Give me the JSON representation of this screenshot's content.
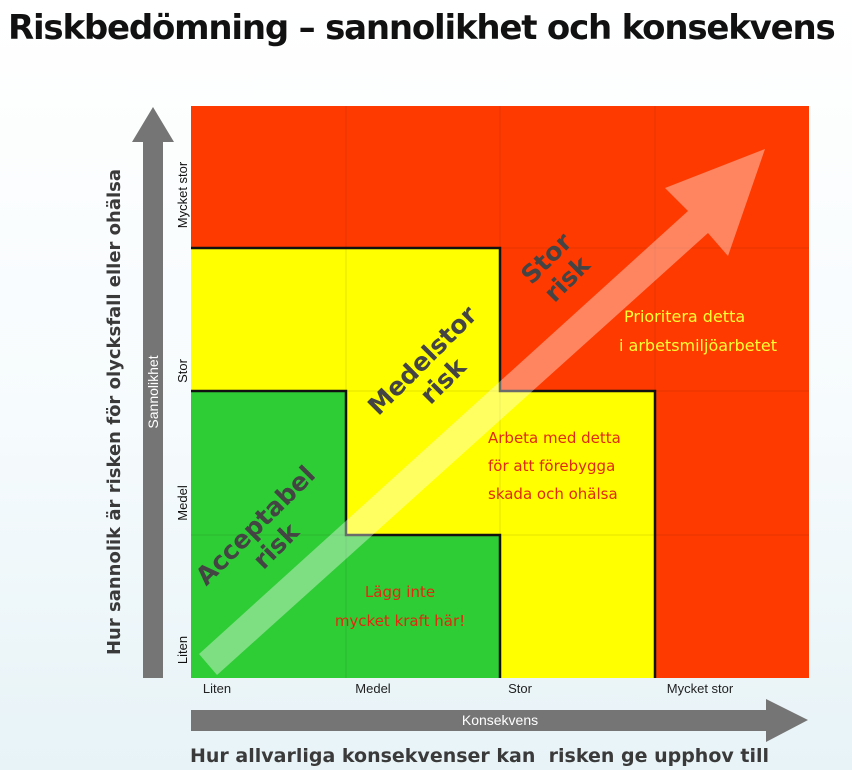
{
  "title": "Riskbedömning – sannolikhet och konsekvens",
  "y_axis": {
    "arrow_label": "Sannolikhet",
    "question": "Hur sannolik är risken för olycksfall eller ohälsa",
    "ticks": [
      "Liten",
      "Medel",
      "Stor",
      "Mycket stor"
    ]
  },
  "x_axis": {
    "arrow_label": "Konsekvens",
    "question": "Hur allvarliga konsekvenser kan  risken ge upphov till",
    "ticks": [
      "Liten",
      "Medel",
      "Stor",
      "Mycket stor"
    ]
  },
  "colors": {
    "green": "#2ecc35",
    "yellow": "#ffff00",
    "red": "#ff3a00",
    "axis_arrow": "#757575",
    "diagonal_arrow": "#ffffff"
  },
  "zones": {
    "acceptable": {
      "line1": "Acceptabel",
      "line2": "risk"
    },
    "medium": {
      "line1": "Medelstor",
      "line2": "risk"
    },
    "large": {
      "line1": "Stor",
      "line2": "risk"
    }
  },
  "notes": {
    "acceptable": [
      "Lägg inte",
      "mycket kraft här!"
    ],
    "medium": [
      "Arbeta med detta",
      "för att förebygga",
      "skada och ohälsa"
    ],
    "large": [
      "Prioritera detta",
      "i arbetsmiljöarbetet"
    ]
  },
  "matrix": [
    [
      "yellow",
      "red",
      "red",
      "red"
    ],
    [
      "green",
      "yellow",
      "yellow",
      "red"
    ],
    [
      "green",
      "green",
      "yellow",
      "red"
    ],
    [
      "green",
      "green",
      "yellow",
      "yellow"
    ]
  ]
}
